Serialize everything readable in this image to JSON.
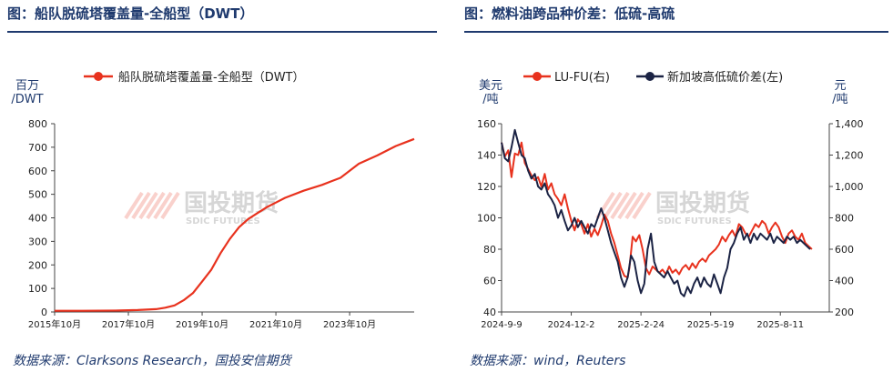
{
  "panels": [
    {
      "title": "图：船队脱硫塔覆盖量-全船型（DWT）",
      "source": "数据来源：Clarksons Research，国投安信期货"
    },
    {
      "title": "图：燃料油跨品种价差：低硫-高硫",
      "source": "数据来源：wind，Reuters"
    }
  ],
  "watermark": {
    "cn": "国投期货",
    "en": "SDIC FUTURES"
  },
  "colors": {
    "red": "#e8321e",
    "navy": "#1b2344",
    "title": "#1f3a6e"
  },
  "chart_data": [
    {
      "type": "line",
      "legend_position": "top",
      "ylabel_lines": [
        "百万",
        "/DWT"
      ],
      "ylim": [
        0,
        800
      ],
      "yticks": [
        "0",
        "100",
        "200",
        "300",
        "400",
        "500",
        "600",
        "700",
        "800"
      ],
      "xticks": [
        {
          "label": "2015年10月",
          "x": 2015.75
        },
        {
          "label": "2017年10月",
          "x": 2017.75
        },
        {
          "label": "2019年10月",
          "x": 2019.75
        },
        {
          "label": "2021年10月",
          "x": 2021.75
        },
        {
          "label": "2023年10月",
          "x": 2023.75
        }
      ],
      "xlim": [
        2015.75,
        2025.5
      ],
      "series": [
        {
          "name": "船队脱硫塔覆盖量-全船型（DWT）",
          "color": "#e8321e",
          "points": [
            [
              2015.75,
              5
            ],
            [
              2016.5,
              5
            ],
            [
              2017.5,
              6
            ],
            [
              2018.0,
              8
            ],
            [
              2018.5,
              12
            ],
            [
              2018.75,
              18
            ],
            [
              2019.0,
              28
            ],
            [
              2019.25,
              50
            ],
            [
              2019.5,
              80
            ],
            [
              2019.75,
              130
            ],
            [
              2020.0,
              180
            ],
            [
              2020.25,
              250
            ],
            [
              2020.5,
              310
            ],
            [
              2020.75,
              360
            ],
            [
              2021.0,
              395
            ],
            [
              2021.25,
              420
            ],
            [
              2021.5,
              445
            ],
            [
              2021.75,
              465
            ],
            [
              2022.0,
              485
            ],
            [
              2022.5,
              515
            ],
            [
              2023.0,
              540
            ],
            [
              2023.25,
              555
            ],
            [
              2023.5,
              570
            ],
            [
              2023.75,
              600
            ],
            [
              2024.0,
              630
            ],
            [
              2024.5,
              665
            ],
            [
              2025.0,
              705
            ],
            [
              2025.25,
              720
            ],
            [
              2025.5,
              735
            ]
          ]
        }
      ]
    },
    {
      "type": "line",
      "legend_position": "top",
      "ylabel_left_lines": [
        "美元",
        "/吨"
      ],
      "ylabel_right_lines": [
        "元",
        "/吨"
      ],
      "ylim_left": [
        40,
        160
      ],
      "ylim_right": [
        200,
        1400
      ],
      "yticks_left": [
        "40",
        "60",
        "80",
        "100",
        "120",
        "140",
        "160"
      ],
      "yticks_right": [
        "200",
        "400",
        "600",
        "800",
        "1,000",
        "1,200",
        "1,400"
      ],
      "xticks": [
        "2024-9-9",
        "2024-12-2",
        "2025-2-24",
        "2025-5-19",
        "2025-8-11"
      ],
      "xlim_days": [
        0,
        395
      ],
      "series": [
        {
          "name": "LU-FU(右)",
          "axis": "right",
          "color": "#e8321e",
          "points": [
            [
              0,
              1280
            ],
            [
              4,
              1190
            ],
            [
              8,
              1230
            ],
            [
              12,
              1060
            ],
            [
              16,
              1210
            ],
            [
              20,
              1200
            ],
            [
              24,
              1280
            ],
            [
              28,
              1150
            ],
            [
              32,
              1110
            ],
            [
              36,
              1070
            ],
            [
              40,
              1040
            ],
            [
              44,
              1060
            ],
            [
              48,
              1000
            ],
            [
              52,
              1080
            ],
            [
              56,
              980
            ],
            [
              60,
              1020
            ],
            [
              64,
              950
            ],
            [
              68,
              920
            ],
            [
              72,
              880
            ],
            [
              76,
              950
            ],
            [
              80,
              860
            ],
            [
              84,
              780
            ],
            [
              88,
              720
            ],
            [
              92,
              790
            ],
            [
              96,
              760
            ],
            [
              100,
              700
            ],
            [
              104,
              760
            ],
            [
              108,
              680
            ],
            [
              112,
              730
            ],
            [
              116,
              690
            ],
            [
              120,
              750
            ],
            [
              124,
              820
            ],
            [
              128,
              780
            ],
            [
              132,
              700
            ],
            [
              136,
              640
            ],
            [
              140,
              560
            ],
            [
              144,
              480
            ],
            [
              148,
              430
            ],
            [
              152,
              420
            ],
            [
              154,
              480
            ],
            [
              158,
              680
            ],
            [
              162,
              650
            ],
            [
              166,
              690
            ],
            [
              170,
              600
            ],
            [
              174,
              480
            ],
            [
              178,
              440
            ],
            [
              182,
              490
            ],
            [
              186,
              470
            ],
            [
              190,
              450
            ],
            [
              194,
              470
            ],
            [
              198,
              440
            ],
            [
              202,
              490
            ],
            [
              206,
              450
            ],
            [
              210,
              470
            ],
            [
              214,
              440
            ],
            [
              218,
              480
            ],
            [
              222,
              500
            ],
            [
              226,
              470
            ],
            [
              230,
              510
            ],
            [
              234,
              480
            ],
            [
              238,
              520
            ],
            [
              242,
              540
            ],
            [
              246,
              520
            ],
            [
              250,
              560
            ],
            [
              254,
              580
            ],
            [
              258,
              600
            ],
            [
              262,
              630
            ],
            [
              266,
              680
            ],
            [
              270,
              650
            ],
            [
              274,
              690
            ],
            [
              278,
              720
            ],
            [
              282,
              680
            ],
            [
              286,
              760
            ],
            [
              290,
              740
            ],
            [
              294,
              700
            ],
            [
              298,
              680
            ],
            [
              302,
              720
            ],
            [
              306,
              760
            ],
            [
              310,
              740
            ],
            [
              314,
              780
            ],
            [
              318,
              760
            ],
            [
              322,
              700
            ],
            [
              326,
              740
            ],
            [
              330,
              770
            ],
            [
              334,
              740
            ],
            [
              338,
              680
            ],
            [
              342,
              640
            ],
            [
              346,
              700
            ],
            [
              350,
              720
            ],
            [
              354,
              680
            ],
            [
              358,
              660
            ],
            [
              362,
              700
            ],
            [
              366,
              640
            ],
            [
              370,
              620
            ],
            [
              374,
              600
            ]
          ]
        },
        {
          "name": "新加坡高低硫价差(左)",
          "axis": "left",
          "color": "#1b2344",
          "points": [
            [
              0,
              148
            ],
            [
              4,
              138
            ],
            [
              8,
              136
            ],
            [
              12,
              145
            ],
            [
              16,
              156
            ],
            [
              20,
              148
            ],
            [
              24,
              140
            ],
            [
              28,
              138
            ],
            [
              32,
              130
            ],
            [
              36,
              125
            ],
            [
              40,
              128
            ],
            [
              44,
              120
            ],
            [
              48,
              118
            ],
            [
              52,
              122
            ],
            [
              56,
              115
            ],
            [
              60,
              112
            ],
            [
              64,
              108
            ],
            [
              68,
              100
            ],
            [
              72,
              105
            ],
            [
              76,
              98
            ],
            [
              80,
              92
            ],
            [
              84,
              95
            ],
            [
              88,
              100
            ],
            [
              92,
              94
            ],
            [
              96,
              98
            ],
            [
              100,
              94
            ],
            [
              104,
              90
            ],
            [
              108,
              96
            ],
            [
              112,
              94
            ],
            [
              116,
              100
            ],
            [
              120,
              106
            ],
            [
              124,
              100
            ],
            [
              128,
              92
            ],
            [
              132,
              84
            ],
            [
              136,
              78
            ],
            [
              140,
              72
            ],
            [
              144,
              62
            ],
            [
              148,
              56
            ],
            [
              152,
              62
            ],
            [
              156,
              76
            ],
            [
              160,
              72
            ],
            [
              164,
              60
            ],
            [
              168,
              52
            ],
            [
              172,
              58
            ],
            [
              176,
              80
            ],
            [
              180,
              90
            ],
            [
              184,
              72
            ],
            [
              188,
              66
            ],
            [
              192,
              64
            ],
            [
              196,
              62
            ],
            [
              200,
              66
            ],
            [
              204,
              62
            ],
            [
              208,
              58
            ],
            [
              212,
              60
            ],
            [
              216,
              52
            ],
            [
              220,
              50
            ],
            [
              224,
              56
            ],
            [
              228,
              52
            ],
            [
              232,
              58
            ],
            [
              236,
              62
            ],
            [
              240,
              56
            ],
            [
              244,
              62
            ],
            [
              248,
              58
            ],
            [
              252,
              56
            ],
            [
              256,
              64
            ],
            [
              260,
              58
            ],
            [
              264,
              52
            ],
            [
              268,
              62
            ],
            [
              272,
              68
            ],
            [
              276,
              80
            ],
            [
              280,
              84
            ],
            [
              284,
              90
            ],
            [
              288,
              94
            ],
            [
              292,
              86
            ],
            [
              296,
              90
            ],
            [
              300,
              84
            ],
            [
              304,
              90
            ],
            [
              308,
              86
            ],
            [
              312,
              90
            ],
            [
              316,
              88
            ],
            [
              320,
              86
            ],
            [
              324,
              90
            ],
            [
              328,
              84
            ],
            [
              332,
              88
            ],
            [
              336,
              86
            ],
            [
              340,
              84
            ],
            [
              344,
              88
            ],
            [
              348,
              86
            ],
            [
              352,
              88
            ],
            [
              356,
              84
            ],
            [
              360,
              86
            ],
            [
              364,
              84
            ],
            [
              368,
              82
            ],
            [
              372,
              80
            ]
          ]
        }
      ]
    }
  ]
}
